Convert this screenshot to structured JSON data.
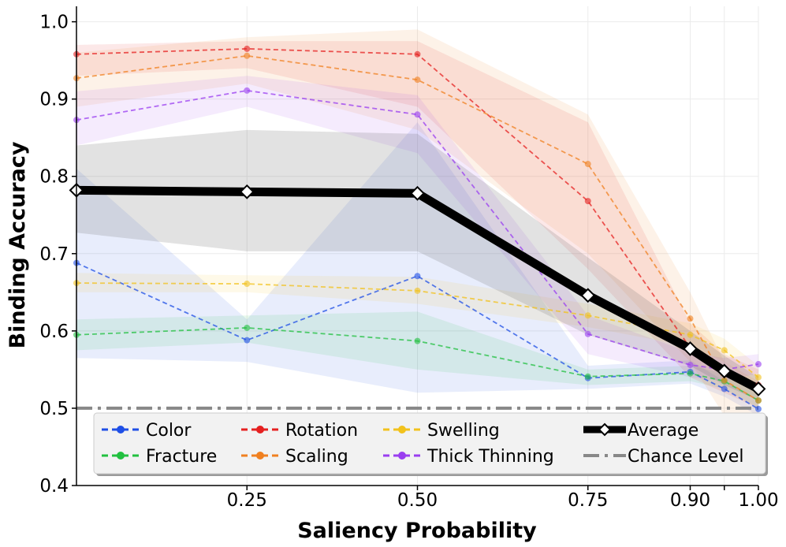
{
  "chart_data": {
    "type": "line",
    "title": "",
    "xlabel": "Saliency Probability",
    "ylabel": "Binding Accuracy",
    "xlim": [
      0.0,
      1.0
    ],
    "ylim": [
      0.4,
      1.02
    ],
    "grid": true,
    "x": [
      0.0,
      0.25,
      0.5,
      0.75,
      0.9,
      0.95,
      1.0
    ],
    "x_ticks": [
      {
        "value": 0.25,
        "label": "0.25"
      },
      {
        "value": 0.5,
        "label": "0.50"
      },
      {
        "value": 0.75,
        "label": "0.75"
      },
      {
        "value": 0.9,
        "label": "0.90"
      },
      {
        "value": 0.95,
        "label": ""
      },
      {
        "value": 1.0,
        "label": "1.00"
      }
    ],
    "y_ticks": [
      {
        "value": 0.4,
        "label": "0.4"
      },
      {
        "value": 0.5,
        "label": "0.5"
      },
      {
        "value": 0.6,
        "label": "0.6"
      },
      {
        "value": 0.7,
        "label": "0.7"
      },
      {
        "value": 0.8,
        "label": "0.8"
      },
      {
        "value": 0.9,
        "label": "0.9"
      },
      {
        "value": 1.0,
        "label": "1.0"
      }
    ],
    "series": [
      {
        "name": "Color",
        "color": "#1f4fe6",
        "values": [
          0.688,
          0.588,
          0.671,
          0.539,
          0.547,
          0.525,
          0.499
        ],
        "lower": [
          0.565,
          0.56,
          0.52,
          0.525,
          0.532,
          0.515,
          0.49
        ],
        "upper": [
          0.81,
          0.615,
          0.87,
          0.555,
          0.562,
          0.535,
          0.51
        ]
      },
      {
        "name": "Fracture",
        "color": "#22c040",
        "values": [
          0.595,
          0.604,
          0.587,
          0.541,
          0.545,
          0.535,
          0.51
        ],
        "lower": [
          0.575,
          0.585,
          0.55,
          0.53,
          0.535,
          0.525,
          0.5
        ],
        "upper": [
          0.615,
          0.62,
          0.625,
          0.55,
          0.555,
          0.545,
          0.52
        ]
      },
      {
        "name": "Rotation",
        "color": "#e52020",
        "values": [
          0.958,
          0.965,
          0.958,
          0.768,
          0.578,
          0.547,
          0.53
        ],
        "lower": [
          0.93,
          0.94,
          0.89,
          0.68,
          0.54,
          0.52,
          0.5
        ],
        "upper": [
          0.97,
          0.975,
          0.975,
          0.87,
          0.61,
          0.57,
          0.55
        ]
      },
      {
        "name": "Scaling",
        "color": "#f08020",
        "values": [
          0.927,
          0.956,
          0.925,
          0.816,
          0.616,
          0.536,
          0.51
        ],
        "lower": [
          0.89,
          0.92,
          0.86,
          0.7,
          0.56,
          0.49,
          0.47
        ],
        "upper": [
          0.96,
          0.98,
          0.99,
          0.88,
          0.65,
          0.56,
          0.535
        ]
      },
      {
        "name": "Swelling",
        "color": "#f2c21c",
        "values": [
          0.662,
          0.661,
          0.652,
          0.62,
          0.595,
          0.575,
          0.54
        ],
        "lower": [
          0.65,
          0.65,
          0.635,
          0.605,
          0.58,
          0.56,
          0.525
        ],
        "upper": [
          0.675,
          0.672,
          0.67,
          0.635,
          0.61,
          0.59,
          0.555
        ]
      },
      {
        "name": "Thick Thinning",
        "color": "#9a3ef0",
        "values": [
          0.873,
          0.911,
          0.88,
          0.596,
          0.556,
          0.55,
          0.557
        ],
        "lower": [
          0.84,
          0.89,
          0.83,
          0.57,
          0.54,
          0.535,
          0.545
        ],
        "upper": [
          0.91,
          0.93,
          0.905,
          0.62,
          0.572,
          0.565,
          0.57
        ]
      },
      {
        "name": "Average",
        "color": "#000000",
        "kind": "average",
        "values": [
          0.782,
          0.78,
          0.778,
          0.646,
          0.577,
          0.548,
          0.525
        ],
        "lower": [
          0.727,
          0.703,
          0.703,
          0.595,
          0.555,
          0.53,
          0.51
        ],
        "upper": [
          0.84,
          0.86,
          0.855,
          0.695,
          0.6,
          0.568,
          0.54
        ]
      }
    ],
    "reference_lines": [
      {
        "name": "Chance Level",
        "value": 0.5,
        "color": "#888888"
      }
    ],
    "legend": {
      "placement": "bottom",
      "columns": [
        [
          "Color",
          "Fracture"
        ],
        [
          "Rotation",
          "Scaling"
        ],
        [
          "Swelling",
          "Thick Thinning"
        ],
        [
          "Average",
          "Chance Level"
        ]
      ]
    }
  }
}
